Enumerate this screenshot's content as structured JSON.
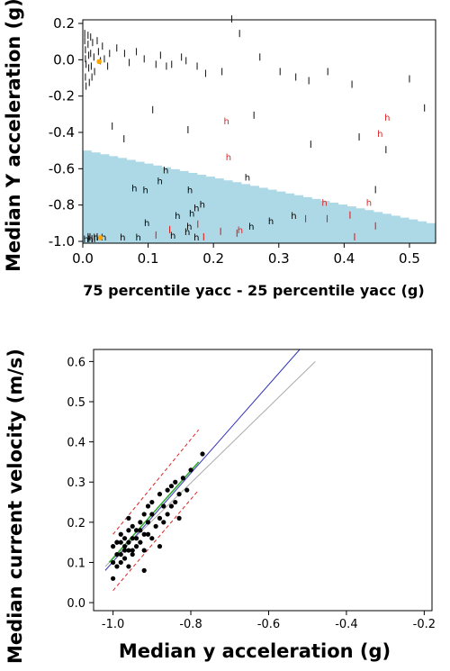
{
  "chart_data": [
    {
      "type": "scatter",
      "xlabel": "75 percentile yacc - 25 percentile yacc (g)",
      "ylabel": "Median Y acceleration (g)",
      "xlim": [
        0,
        0.54
      ],
      "ylim": [
        -1.01,
        0.22
      ],
      "x_ticks": [
        "0.0",
        "0.1",
        "0.2",
        "0.3",
        "0.4",
        "0.5"
      ],
      "y_ticks": [
        "0.2",
        "0.0",
        "-0.2",
        "-0.4",
        "-0.6",
        "-0.8",
        "-1.0"
      ],
      "colors": {
        "region": "#add8e6",
        "h_marker": "#000000",
        "l_marker": "#000000",
        "red_marker": "#dd2222",
        "highlight": "#ffa500"
      },
      "shaded_region": [
        [
          0.0,
          -0.5
        ],
        [
          0.54,
          -0.91
        ]
      ],
      "series": [
        {
          "marker": "l",
          "color": "#222222",
          "points": [
            [
              0.003,
              0.14
            ],
            [
              0.003,
              0.1
            ],
            [
              0.004,
              0.05
            ],
            [
              0.004,
              0.0
            ],
            [
              0.005,
              -0.03
            ],
            [
              0.004,
              -0.1
            ],
            [
              0.005,
              -0.15
            ],
            [
              0.008,
              0.13
            ],
            [
              0.008,
              0.08
            ],
            [
              0.009,
              0.02
            ],
            [
              0.009,
              -0.05
            ],
            [
              0.01,
              -0.13
            ],
            [
              0.012,
              0.12
            ],
            [
              0.012,
              0.03
            ],
            [
              0.013,
              -0.04
            ],
            [
              0.014,
              -0.1
            ],
            [
              0.015,
              0.09
            ],
            [
              0.017,
              0.01
            ],
            [
              0.018,
              -0.07
            ],
            [
              0.022,
              0.1
            ],
            [
              0.024,
              0.04
            ],
            [
              0.027,
              -0.01
            ],
            [
              0.03,
              0.07
            ],
            [
              0.033,
              0.0
            ],
            [
              0.038,
              -0.04
            ],
            [
              0.041,
              0.03
            ],
            [
              0.052,
              0.06
            ],
            [
              0.064,
              0.03
            ],
            [
              0.071,
              -0.02
            ],
            [
              0.082,
              0.04
            ],
            [
              0.094,
              0.0
            ],
            [
              0.112,
              -0.03
            ],
            [
              0.119,
              0.02
            ],
            [
              0.128,
              -0.04
            ],
            [
              0.136,
              -0.03
            ],
            [
              0.151,
              0.01
            ],
            [
              0.158,
              -0.01
            ],
            [
              0.175,
              -0.04
            ],
            [
              0.188,
              -0.08
            ],
            [
              0.213,
              -0.07
            ],
            [
              0.228,
              0.22
            ],
            [
              0.24,
              0.14
            ],
            [
              0.271,
              0.01
            ],
            [
              0.302,
              -0.07
            ],
            [
              0.326,
              -0.1
            ],
            [
              0.346,
              -0.12
            ],
            [
              0.375,
              -0.07
            ],
            [
              0.412,
              -0.14
            ],
            [
              0.5,
              -0.11
            ],
            [
              0.523,
              -0.27
            ],
            [
              0.107,
              -0.28
            ],
            [
              0.045,
              -0.37
            ],
            [
              0.063,
              -0.44
            ],
            [
              0.161,
              -0.39
            ],
            [
              0.262,
              -0.31
            ],
            [
              0.349,
              -0.47
            ],
            [
              0.423,
              -0.43
            ],
            [
              0.464,
              -0.5
            ],
            [
              0.448,
              -0.72
            ],
            [
              0.008,
              -0.98
            ],
            [
              0.011,
              -0.98
            ],
            [
              0.014,
              -0.99
            ],
            [
              0.018,
              -0.99
            ],
            [
              0.022,
              -0.98
            ]
          ]
        },
        {
          "marker": "l",
          "color": "#dd2222",
          "points": [
            [
              0.112,
              -0.97
            ],
            [
              0.133,
              -0.94
            ],
            [
              0.176,
              -0.91
            ],
            [
              0.185,
              -0.98
            ],
            [
              0.211,
              -0.95
            ],
            [
              0.236,
              -0.96
            ],
            [
              0.341,
              -0.88
            ],
            [
              0.374,
              -0.88
            ],
            [
              0.409,
              -0.86
            ],
            [
              0.416,
              -0.98
            ],
            [
              0.448,
              -0.92
            ]
          ]
        },
        {
          "marker": "h",
          "color": "#000000",
          "points": [
            [
              0.127,
              -0.61
            ],
            [
              0.118,
              -0.67
            ],
            [
              0.079,
              -0.71
            ],
            [
              0.096,
              -0.72
            ],
            [
              0.164,
              -0.72
            ],
            [
              0.183,
              -0.8
            ],
            [
              0.174,
              -0.82
            ],
            [
              0.167,
              -0.85
            ],
            [
              0.145,
              -0.86
            ],
            [
              0.098,
              -0.9
            ],
            [
              0.163,
              -0.92
            ],
            [
              0.16,
              -0.95
            ],
            [
              0.138,
              -0.97
            ],
            [
              0.174,
              -0.98
            ],
            [
              0.085,
              -0.98
            ],
            [
              0.061,
              -0.98
            ],
            [
              0.032,
              -0.98
            ],
            [
              0.02,
              -0.98
            ],
            [
              0.258,
              -0.92
            ],
            [
              0.288,
              -0.89
            ],
            [
              0.323,
              -0.86
            ],
            [
              0.252,
              -0.65
            ],
            [
              0.005,
              -0.99
            ],
            [
              0.012,
              -0.99
            ]
          ]
        },
        {
          "marker": "h",
          "color": "#dd2222",
          "points": [
            [
              0.223,
              -0.54
            ],
            [
              0.241,
              -0.94
            ],
            [
              0.37,
              -0.79
            ],
            [
              0.438,
              -0.79
            ],
            [
              0.455,
              -0.41
            ],
            [
              0.466,
              -0.32
            ],
            [
              0.22,
              -0.34
            ]
          ]
        },
        {
          "marker": "dot",
          "color": "#ffa500",
          "points": [
            [
              0.025,
              -0.01
            ],
            [
              0.027,
              -0.98
            ]
          ]
        }
      ]
    },
    {
      "type": "scatter",
      "xlabel": "Median y acceleration (g)",
      "ylabel": "Median current velocity (m/s)",
      "xlim": [
        -1.05,
        -0.18
      ],
      "ylim": [
        -0.02,
        0.63
      ],
      "x_ticks": [
        "-1.0",
        "-0.8",
        "-0.6",
        "-0.4",
        "-0.2"
      ],
      "y_ticks": [
        "0.0",
        "0.1",
        "0.2",
        "0.3",
        "0.4",
        "0.5",
        "0.6"
      ],
      "colors": {
        "points": "#000000",
        "blue_fit": "#3333bb",
        "gray_fit": "#aaaaaa",
        "green_fit": "#33aa33",
        "band": "#dd2222"
      },
      "points": [
        [
          -1.0,
          0.1
        ],
        [
          -1.0,
          0.06
        ],
        [
          -0.99,
          0.12
        ],
        [
          -0.99,
          0.15
        ],
        [
          -0.98,
          0.1
        ],
        [
          -0.98,
          0.17
        ],
        [
          -0.97,
          0.13
        ],
        [
          -0.97,
          0.11
        ],
        [
          -0.96,
          0.15
        ],
        [
          -0.96,
          0.18
        ],
        [
          -0.96,
          0.09
        ],
        [
          -0.95,
          0.12
        ],
        [
          -0.95,
          0.16
        ],
        [
          -0.94,
          0.14
        ],
        [
          -0.94,
          0.18
        ],
        [
          -0.93,
          0.2
        ],
        [
          -0.93,
          0.15
        ],
        [
          -0.92,
          0.17
        ],
        [
          -0.92,
          0.13
        ],
        [
          -0.91,
          0.2
        ],
        [
          -0.91,
          0.17
        ],
        [
          -0.9,
          0.22
        ],
        [
          -0.9,
          0.25
        ],
        [
          -0.89,
          0.19
        ],
        [
          -0.88,
          0.21
        ],
        [
          -0.88,
          0.27
        ],
        [
          -0.87,
          0.24
        ],
        [
          -0.86,
          0.28
        ],
        [
          -0.86,
          0.22
        ],
        [
          -0.85,
          0.29
        ],
        [
          -0.84,
          0.25
        ],
        [
          -0.84,
          0.3
        ],
        [
          -0.83,
          0.27
        ],
        [
          -0.82,
          0.31
        ],
        [
          -0.81,
          0.28
        ],
        [
          -0.96,
          0.21
        ],
        [
          -0.95,
          0.13
        ],
        [
          -0.97,
          0.16
        ],
        [
          -0.99,
          0.09
        ],
        [
          -1.0,
          0.14
        ],
        [
          -0.98,
          0.15
        ],
        [
          -0.95,
          0.19
        ],
        [
          -0.92,
          0.08
        ],
        [
          -0.9,
          0.16
        ],
        [
          -0.88,
          0.14
        ],
        [
          -0.87,
          0.2
        ],
        [
          -0.85,
          0.24
        ],
        [
          -0.83,
          0.21
        ],
        [
          -0.8,
          0.33
        ],
        [
          -0.77,
          0.37
        ],
        [
          -0.99,
          0.15
        ],
        [
          -0.98,
          0.12
        ],
        [
          -0.97,
          0.14
        ],
        [
          -0.96,
          0.13
        ],
        [
          -0.94,
          0.16
        ],
        [
          -0.93,
          0.18
        ],
        [
          -0.92,
          0.22
        ],
        [
          -0.91,
          0.24
        ]
      ],
      "lines": [
        {
          "style": "solid",
          "color": "#3333bb",
          "points": [
            [
              -1.02,
              0.08
            ],
            [
              -0.52,
              0.63
            ]
          ]
        },
        {
          "style": "solid",
          "color": "#aaaaaa",
          "points": [
            [
              -1.02,
              0.09
            ],
            [
              -0.48,
              0.6
            ]
          ]
        },
        {
          "style": "solid",
          "color": "#33aa33",
          "points": [
            [
              -1.01,
              0.1
            ],
            [
              -0.78,
              0.35
            ]
          ]
        },
        {
          "style": "dashed",
          "color": "#dd2222",
          "points": [
            [
              -1.0,
              0.17
            ],
            [
              -0.78,
              0.43
            ]
          ]
        },
        {
          "style": "dashed",
          "color": "#dd2222",
          "points": [
            [
              -1.0,
              0.03
            ],
            [
              -0.78,
              0.28
            ]
          ]
        }
      ]
    }
  ]
}
